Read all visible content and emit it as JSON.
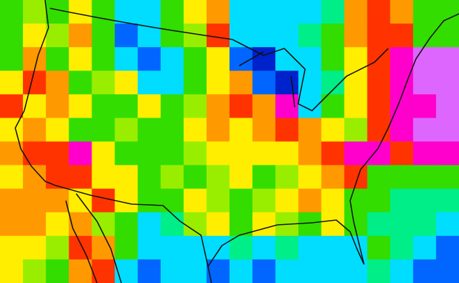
{
  "map": {
    "palette": {
      "G": "#33dd00",
      "L": "#99ee00",
      "Y": "#ffee00",
      "O": "#ff9900",
      "R": "#ff3300",
      "C": "#00ddff",
      "B": "#0066ff",
      "D": "#0022cc",
      "M": "#ff00cc",
      "P": "#dd66ff",
      "T": "#00ee88"
    },
    "cells": [
      [
        "G",
        "L",
        "G",
        "Y",
        "G",
        "C",
        "C",
        "G",
        "Y",
        "O",
        "C",
        "C",
        "C",
        "C",
        "T",
        "O",
        "R",
        "O",
        "G",
        "G"
      ],
      [
        "G",
        "Y",
        "L",
        "O",
        "G",
        "B",
        "C",
        "G",
        "L",
        "R",
        "C",
        "C",
        "C",
        "T",
        "G",
        "O",
        "R",
        "R",
        "G",
        "G"
      ],
      [
        "G",
        "O",
        "G",
        "Y",
        "G",
        "C",
        "B",
        "C",
        "G",
        "Y",
        "B",
        "D",
        "C",
        "C",
        "G",
        "Y",
        "R",
        "M",
        "P",
        "P"
      ],
      [
        "Y",
        "R",
        "O",
        "G",
        "L",
        "Y",
        "C",
        "C",
        "G",
        "Y",
        "O",
        "B",
        "D",
        "C",
        "T",
        "Y",
        "R",
        "M",
        "P",
        "P"
      ],
      [
        "R",
        "Y",
        "O",
        "Y",
        "G",
        "G",
        "Y",
        "G",
        "L",
        "O",
        "R",
        "O",
        "M",
        "C",
        "G",
        "Y",
        "R",
        "M",
        "M",
        "P"
      ],
      [
        "Y",
        "O",
        "Y",
        "G",
        "G",
        "L",
        "G",
        "G",
        "Y",
        "O",
        "Y",
        "O",
        "R",
        "O",
        "Y",
        "L",
        "R",
        "M",
        "P",
        "P"
      ],
      [
        "O",
        "R",
        "R",
        "M",
        "Y",
        "G",
        "G",
        "G",
        "L",
        "Y",
        "Y",
        "Y",
        "Y",
        "O",
        "R",
        "M",
        "M",
        "R",
        "M",
        "M"
      ],
      [
        "Y",
        "O",
        "R",
        "R",
        "Y",
        "Y",
        "G",
        "L",
        "G",
        "L",
        "Y",
        "G",
        "L",
        "Y",
        "O",
        "R",
        "G",
        "G",
        "G",
        "G"
      ],
      [
        "O",
        "O",
        "O",
        "Y",
        "R",
        "Y",
        "G",
        "G",
        "Y",
        "L",
        "G",
        "L",
        "Y",
        "O",
        "Y",
        "G",
        "G",
        "T",
        "T",
        "T"
      ],
      [
        "O",
        "O",
        "Y",
        "O",
        "L",
        "G",
        "C",
        "T",
        "L",
        "Y",
        "G",
        "Y",
        "L",
        "G",
        "Y",
        "G",
        "T",
        "T",
        "T",
        "C"
      ],
      [
        "Y",
        "Y",
        "L",
        "R",
        "O",
        "G",
        "C",
        "C",
        "C",
        "C",
        "T",
        "C",
        "T",
        "C",
        "C",
        "C",
        "G",
        "T",
        "C",
        "B"
      ],
      [
        "Y",
        "L",
        "G",
        "O",
        "R",
        "C",
        "B",
        "C",
        "C",
        "B",
        "C",
        "B",
        "C",
        "C",
        "C",
        "C",
        "T",
        "C",
        "B",
        "B"
      ]
    ]
  }
}
